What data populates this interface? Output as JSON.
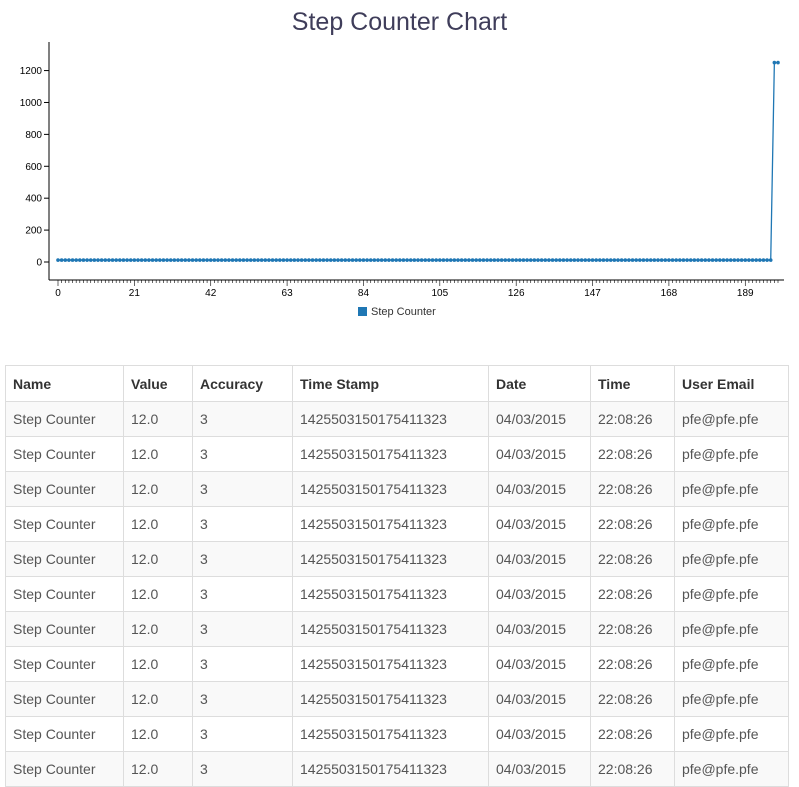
{
  "chart_data": {
    "type": "line",
    "title": "Step Counter Chart",
    "xlabel": "",
    "ylabel": "",
    "x_range": [
      0,
      198
    ],
    "xticks": [
      0,
      21,
      42,
      63,
      84,
      105,
      126,
      147,
      168,
      189
    ],
    "ylim": [
      0,
      1260
    ],
    "yticks": [
      0,
      200,
      400,
      600,
      800,
      1000,
      1200
    ],
    "grid": false,
    "legend_position": "bottom-center",
    "series": [
      {
        "name": "Step Counter",
        "color": "#1f77b4",
        "constant_value": 12,
        "constant_from_x": 0,
        "constant_to_x": 196,
        "tail_points": [
          [
            197,
            1250
          ],
          [
            198,
            1250
          ]
        ]
      }
    ]
  },
  "table": {
    "columns": [
      "Name",
      "Value",
      "Accuracy",
      "Time Stamp",
      "Date",
      "Time",
      "User Email"
    ],
    "rows": [
      [
        "Step Counter",
        "12.0",
        "3",
        "1425503150175411323",
        "04/03/2015",
        "22:08:26",
        "pfe@pfe.pfe"
      ],
      [
        "Step Counter",
        "12.0",
        "3",
        "1425503150175411323",
        "04/03/2015",
        "22:08:26",
        "pfe@pfe.pfe"
      ],
      [
        "Step Counter",
        "12.0",
        "3",
        "1425503150175411323",
        "04/03/2015",
        "22:08:26",
        "pfe@pfe.pfe"
      ],
      [
        "Step Counter",
        "12.0",
        "3",
        "1425503150175411323",
        "04/03/2015",
        "22:08:26",
        "pfe@pfe.pfe"
      ],
      [
        "Step Counter",
        "12.0",
        "3",
        "1425503150175411323",
        "04/03/2015",
        "22:08:26",
        "pfe@pfe.pfe"
      ],
      [
        "Step Counter",
        "12.0",
        "3",
        "1425503150175411323",
        "04/03/2015",
        "22:08:26",
        "pfe@pfe.pfe"
      ],
      [
        "Step Counter",
        "12.0",
        "3",
        "1425503150175411323",
        "04/03/2015",
        "22:08:26",
        "pfe@pfe.pfe"
      ],
      [
        "Step Counter",
        "12.0",
        "3",
        "1425503150175411323",
        "04/03/2015",
        "22:08:26",
        "pfe@pfe.pfe"
      ],
      [
        "Step Counter",
        "12.0",
        "3",
        "1425503150175411323",
        "04/03/2015",
        "22:08:26",
        "pfe@pfe.pfe"
      ],
      [
        "Step Counter",
        "12.0",
        "3",
        "1425503150175411323",
        "04/03/2015",
        "22:08:26",
        "pfe@pfe.pfe"
      ],
      [
        "Step Counter",
        "12.0",
        "3",
        "1425503150175411323",
        "04/03/2015",
        "22:08:26",
        "pfe@pfe.pfe"
      ]
    ]
  }
}
